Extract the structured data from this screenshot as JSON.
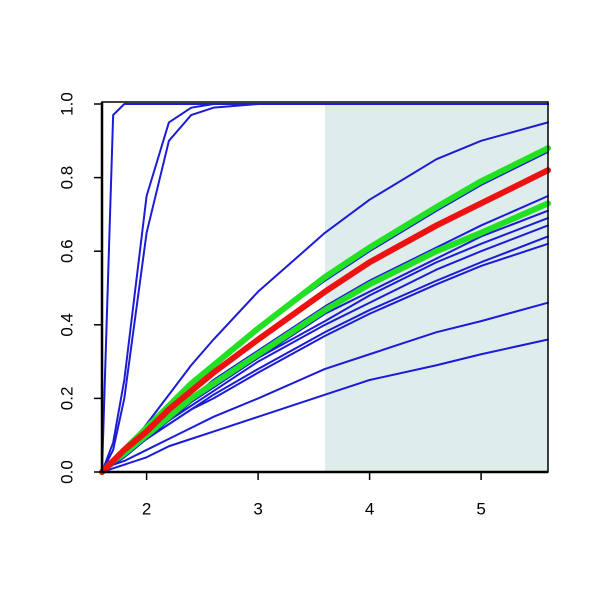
{
  "chart_data": {
    "type": "line",
    "x": [
      1.6,
      1.7,
      1.8,
      2.0,
      2.2,
      2.4,
      2.6,
      3.0,
      3.6,
      4.0,
      4.6,
      5.0,
      5.6
    ],
    "xlim": [
      1.6,
      5.6
    ],
    "xticks": [
      2,
      3,
      4,
      5
    ],
    "ylim": [
      0,
      1
    ],
    "yticks": [
      {
        "value": 0,
        "label": "0.0"
      },
      0.2,
      0.4,
      0.6,
      0.8,
      {
        "value": 1,
        "label": "1.0"
      }
    ],
    "highlight": {
      "xlim": [
        3.6,
        5.6
      ],
      "color": "#dfecec"
    },
    "series": [
      {
        "color": "#1c1cd6",
        "linewidth": 2,
        "values": [
          0,
          0.97,
          1,
          1,
          1,
          1,
          1,
          1,
          1,
          1,
          1,
          1,
          1
        ]
      },
      {
        "color": "#1c1cd6",
        "linewidth": 2,
        "values": [
          0,
          0.08,
          0.25,
          0.75,
          0.95,
          0.99,
          1,
          1,
          1,
          1,
          1,
          1,
          1
        ]
      },
      {
        "color": "#1c1cd6",
        "linewidth": 2,
        "values": [
          0,
          0.06,
          0.2,
          0.65,
          0.9,
          0.97,
          0.99,
          1,
          1,
          1,
          1,
          1,
          1
        ]
      },
      {
        "color": "#1c1cd6",
        "linewidth": 2,
        "values": [
          0,
          0.02,
          0.05,
          0.13,
          0.21,
          0.29,
          0.36,
          0.49,
          0.65,
          0.74,
          0.85,
          0.9,
          0.95
        ]
      },
      {
        "color": "#1c1cd6",
        "linewidth": 2,
        "values": [
          0,
          0.03,
          0.06,
          0.12,
          0.18,
          0.23,
          0.29,
          0.39,
          0.52,
          0.6,
          0.71,
          0.78,
          0.87
        ]
      },
      {
        "color": "#1c1cd6",
        "linewidth": 2,
        "values": [
          0,
          0.03,
          0.05,
          0.11,
          0.15,
          0.2,
          0.25,
          0.33,
          0.45,
          0.52,
          0.61,
          0.67,
          0.75
        ]
      },
      {
        "color": "#1c1cd6",
        "linewidth": 2,
        "values": [
          0,
          0.03,
          0.05,
          0.1,
          0.15,
          0.19,
          0.23,
          0.31,
          0.43,
          0.49,
          0.58,
          0.64,
          0.71
        ]
      },
      {
        "color": "#1c1cd6",
        "linewidth": 2,
        "values": [
          0,
          0.02,
          0.05,
          0.1,
          0.14,
          0.19,
          0.23,
          0.31,
          0.41,
          0.48,
          0.57,
          0.62,
          0.69
        ]
      },
      {
        "color": "#1c1cd6",
        "linewidth": 2,
        "values": [
          0,
          0.02,
          0.05,
          0.09,
          0.14,
          0.18,
          0.22,
          0.3,
          0.4,
          0.46,
          0.55,
          0.6,
          0.67
        ]
      },
      {
        "color": "#1c1cd6",
        "linewidth": 2,
        "values": [
          0,
          0.02,
          0.05,
          0.09,
          0.13,
          0.17,
          0.21,
          0.28,
          0.38,
          0.44,
          0.52,
          0.57,
          0.64
        ]
      },
      {
        "color": "#1c1cd6",
        "linewidth": 2,
        "values": [
          0,
          0.02,
          0.04,
          0.09,
          0.13,
          0.17,
          0.2,
          0.27,
          0.37,
          0.43,
          0.51,
          0.56,
          0.62
        ]
      },
      {
        "color": "#1c1cd6",
        "linewidth": 2,
        "values": [
          0,
          0.02,
          0.03,
          0.06,
          0.09,
          0.12,
          0.15,
          0.2,
          0.28,
          0.32,
          0.38,
          0.41,
          0.46
        ]
      },
      {
        "color": "#1c1cd6",
        "linewidth": 2,
        "values": [
          0,
          0.01,
          0.02,
          0.04,
          0.07,
          0.09,
          0.11,
          0.15,
          0.21,
          0.25,
          0.29,
          0.32,
          0.36
        ]
      },
      {
        "color": "#22e022",
        "linewidth": 6,
        "values": [
          0,
          0.03,
          0.06,
          0.12,
          0.18,
          0.24,
          0.29,
          0.39,
          0.53,
          0.61,
          0.72,
          0.79,
          0.88
        ]
      },
      {
        "color": "#22e022",
        "linewidth": 6,
        "values": [
          0,
          0.03,
          0.05,
          0.1,
          0.15,
          0.2,
          0.24,
          0.32,
          0.44,
          0.51,
          0.6,
          0.65,
          0.73
        ]
      },
      {
        "color": "#ee1111",
        "linewidth": 6,
        "values": [
          0,
          0.03,
          0.06,
          0.11,
          0.17,
          0.22,
          0.27,
          0.36,
          0.49,
          0.57,
          0.67,
          0.73,
          0.82
        ]
      }
    ]
  }
}
